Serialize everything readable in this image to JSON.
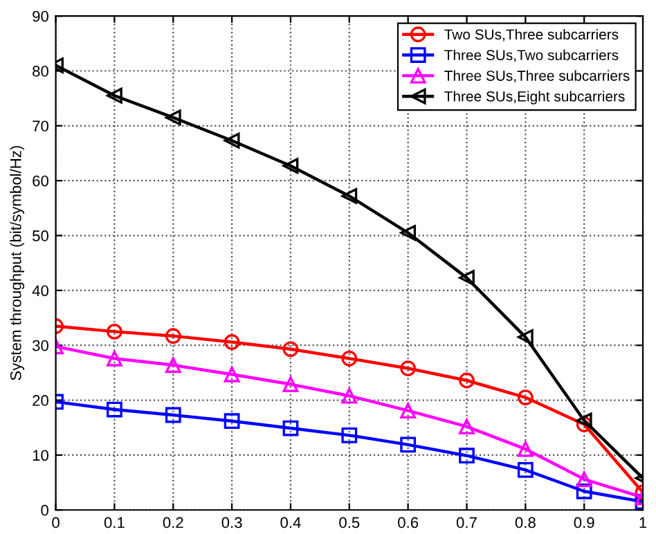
{
  "chart_data": {
    "type": "line",
    "ylabel": "System throughput (bit/symbol/Hz)",
    "x": [
      0,
      0.1,
      0.2,
      0.3,
      0.4,
      0.5,
      0.6,
      0.7,
      0.8,
      0.9,
      1
    ],
    "series": [
      {
        "name": "Two SUs,Three subcarriers",
        "color": "#ff0000",
        "marker": "circle",
        "values": [
          33.5,
          32.5,
          31.7,
          30.6,
          29.3,
          27.6,
          25.8,
          23.6,
          20.5,
          15.6,
          3.2
        ]
      },
      {
        "name": "Three SUs,Two subcarriers",
        "color": "#0000ff",
        "marker": "square",
        "values": [
          19.7,
          18.3,
          17.3,
          16.2,
          14.9,
          13.6,
          11.9,
          9.9,
          7.3,
          3.4,
          1.5
        ]
      },
      {
        "name": "Three SUs,Three subcarriers",
        "color": "#ff00ff",
        "marker": "triangle",
        "values": [
          29.8,
          27.6,
          26.4,
          24.7,
          22.9,
          20.8,
          18.1,
          15.2,
          11.1,
          5.6,
          2.3
        ]
      },
      {
        "name": "Three SUs,Eight subcarriers",
        "color": "#000000",
        "marker": "triangle-left",
        "values": [
          81,
          75.5,
          71.5,
          67.3,
          62.7,
          57.2,
          50.5,
          42.3,
          31.5,
          16.3,
          5.8
        ]
      }
    ],
    "xlim": [
      0,
      1
    ],
    "xticks": [
      0,
      0.1,
      0.2,
      0.3,
      0.4,
      0.5,
      0.6,
      0.7,
      0.8,
      0.9,
      1
    ],
    "ylim": [
      0,
      90
    ],
    "yticks": [
      0,
      10,
      20,
      30,
      40,
      50,
      60,
      70,
      80,
      90
    ],
    "grid": true,
    "legend": "top right",
    "line_style": "solid"
  }
}
